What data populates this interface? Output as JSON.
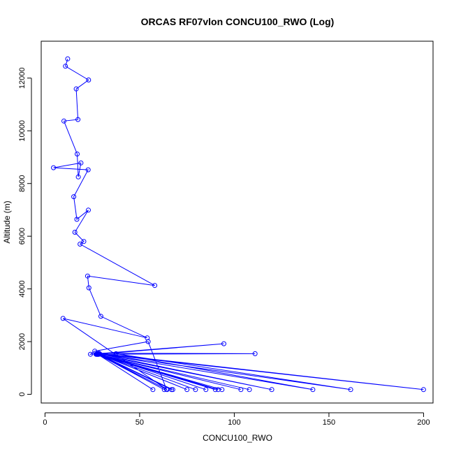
{
  "chart_data": {
    "type": "line",
    "title": "ORCAS RF07vlon CONCU100_RWO (Log)",
    "xlabel": "CONCU100_RWO",
    "ylabel": "Altitude (m)",
    "xlim": [
      -2,
      205
    ],
    "ylim": [
      -330,
      13400
    ],
    "x_ticks": [
      0,
      50,
      100,
      150,
      200
    ],
    "y_ticks": [
      0,
      2000,
      4000,
      6000,
      8000,
      10000,
      12000
    ],
    "grid": false,
    "series": [
      {
        "color": "#0000ff",
        "marker": "open-circle",
        "x": [
          12.0,
          10.8,
          23.0,
          16.5,
          17.4,
          10.0,
          17.0,
          17.6,
          19.0,
          4.5,
          22.8,
          15.2,
          16.8,
          22.9,
          15.8,
          20.5,
          18.5,
          58.0,
          22.5,
          23.2,
          29.5,
          54.0,
          9.5,
          64.2,
          54.5,
          26.3,
          24.0,
          94.5,
          27.7,
          111.0,
          28.5,
          200.0,
          27.5,
          161.5,
          37.5,
          141.5,
          29.0,
          119.8,
          27.3,
          103.5,
          27.0,
          108.0,
          27.0,
          93.5,
          28.0,
          91.5,
          27.5,
          90.0,
          28.5,
          85.0,
          28.5,
          79.5,
          28.3,
          75.0,
          28.0,
          67.5,
          28.5,
          66.8,
          28.2,
          64.5,
          28.0,
          63.0,
          27.8,
          57.0
        ],
        "y": [
          12730,
          12450,
          11930,
          11590,
          10430,
          10370,
          9120,
          8250,
          8780,
          8600,
          8520,
          7500,
          6640,
          6990,
          6150,
          5800,
          5700,
          4130,
          4490,
          4040,
          2960,
          2140,
          2880,
          190,
          2000,
          1640,
          1520,
          1920,
          1520,
          1540,
          1560,
          180,
          1540,
          180,
          1540,
          180,
          1530,
          180,
          1520,
          180,
          1520,
          180,
          1520,
          180,
          1520,
          180,
          1520,
          180,
          1530,
          180,
          1530,
          180,
          1530,
          180,
          1530,
          180,
          1520,
          180,
          1520,
          180,
          1520,
          180,
          1520,
          180
        ]
      }
    ]
  }
}
